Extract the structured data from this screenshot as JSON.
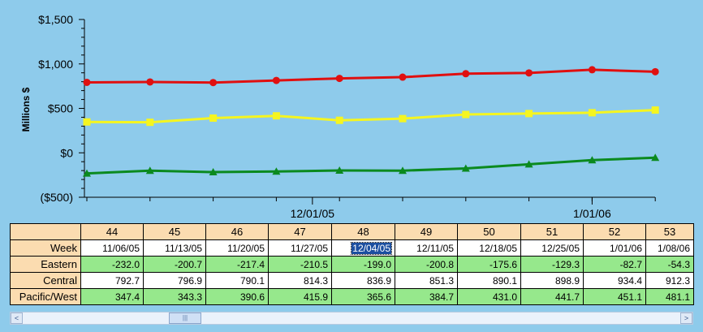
{
  "chart_data": {
    "type": "line",
    "ylabel": "Millions $",
    "ylim": [
      -500,
      1500
    ],
    "y_ticks": [
      -500,
      0,
      500,
      1000,
      1500
    ],
    "y_tick_labels": [
      "($500)",
      "$0",
      "$500",
      "$1,000",
      "$1,500"
    ],
    "x": [
      "11/06/05",
      "11/13/05",
      "11/20/05",
      "11/27/05",
      "12/04/05",
      "12/11/05",
      "12/18/05",
      "12/25/05",
      "1/01/06",
      "1/08/06"
    ],
    "x_tick_labels": [
      "12/01/05",
      "1/01/06"
    ],
    "grid": false,
    "series": [
      {
        "name": "Eastern",
        "color": "#0b8a1f",
        "marker": "triangle",
        "values": [
          -232.0,
          -200.7,
          -217.4,
          -210.5,
          -199.0,
          -200.8,
          -175.6,
          -129.3,
          -82.7,
          -54.3
        ]
      },
      {
        "name": "Central",
        "color": "#e01010",
        "marker": "circle",
        "values": [
          792.7,
          796.9,
          790.1,
          814.3,
          836.9,
          851.3,
          890.1,
          898.9,
          934.4,
          912.3
        ]
      },
      {
        "name": "Pacific/West",
        "color": "#f5f520",
        "marker": "square",
        "values": [
          347.4,
          343.3,
          390.6,
          415.9,
          365.6,
          384.7,
          431.0,
          441.7,
          451.1,
          481.1
        ]
      }
    ]
  },
  "table": {
    "week_numbers": [
      "44",
      "45",
      "46",
      "47",
      "48",
      "49",
      "50",
      "51",
      "52",
      "53"
    ],
    "week_label": "Week",
    "weeks": [
      "11/06/05",
      "11/13/05",
      "11/20/05",
      "11/27/05",
      "12/04/05",
      "12/11/05",
      "12/18/05",
      "12/25/05",
      "1/01/06",
      "1/08/06"
    ],
    "selected_week_index": 4,
    "rows": [
      {
        "label": "Eastern",
        "style": "green",
        "values": [
          "-232.0",
          "-200.7",
          "-217.4",
          "-210.5",
          "-199.0",
          "-200.8",
          "-175.6",
          "-129.3",
          "-82.7",
          "-54.3"
        ]
      },
      {
        "label": "Central",
        "style": "white",
        "values": [
          "792.7",
          "796.9",
          "790.1",
          "814.3",
          "836.9",
          "851.3",
          "890.1",
          "898.9",
          "934.4",
          "912.3"
        ]
      },
      {
        "label": "Pacific/West",
        "style": "green",
        "values": [
          "347.4",
          "343.3",
          "390.6",
          "415.9",
          "365.6",
          "384.7",
          "431.0",
          "441.7",
          "451.1",
          "481.1"
        ]
      }
    ]
  },
  "scrollbar": {
    "left_arrow": "<",
    "right_arrow": ">",
    "thumb_grip": "|||"
  }
}
